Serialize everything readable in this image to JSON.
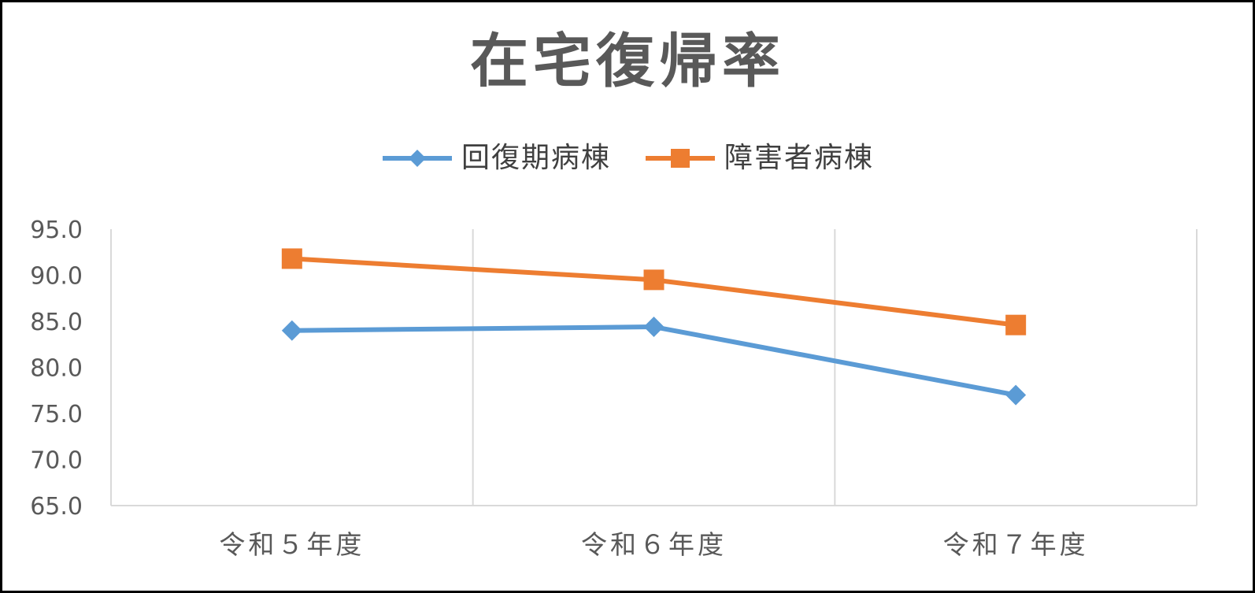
{
  "chart_data": {
    "type": "line",
    "title": "在宅復帰率",
    "categories": [
      "令和５年度",
      "令和６年度",
      "令和７年度"
    ],
    "series": [
      {
        "name": "回復期病棟",
        "values": [
          84.0,
          84.4,
          77.0
        ],
        "color": "#5B9BD5",
        "marker": "diamond"
      },
      {
        "name": "障害者病棟",
        "values": [
          91.8,
          89.5,
          84.6
        ],
        "color": "#ED7D31",
        "marker": "square"
      }
    ],
    "ylim": [
      65.0,
      95.0
    ],
    "yticks": [
      "95.0",
      "90.0",
      "85.0",
      "80.0",
      "75.0",
      "70.0",
      "65.0"
    ],
    "xlabel": "",
    "ylabel": "",
    "grid": "vertical",
    "legend": "top-center"
  }
}
